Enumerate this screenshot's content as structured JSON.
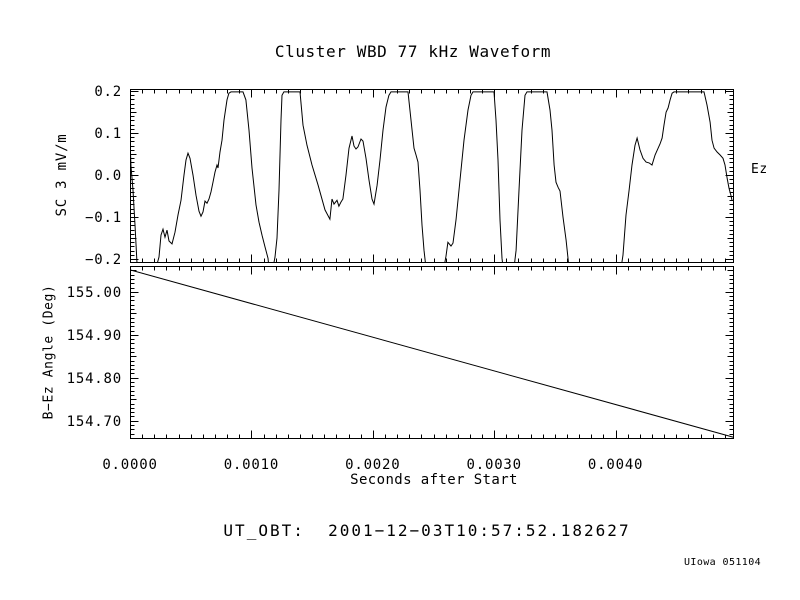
{
  "title": "Cluster WBD 77 kHz Waveform",
  "footer": {
    "ut_obt": "UT_OBT:  2001−12−03T10:57:52.182627",
    "credit": "UIowa 051104"
  },
  "chart_data": {
    "type": "line",
    "title": "Cluster WBD 77 kHz Waveform",
    "xlabel": "Seconds after Start",
    "xlim": [
      0,
      0.004967
    ],
    "x_minor_step": 0.0001,
    "xticks": [
      {
        "v": 0.0,
        "label": "0.0000"
      },
      {
        "v": 0.001,
        "label": "0.0010"
      },
      {
        "v": 0.002,
        "label": "0.0020"
      },
      {
        "v": 0.003,
        "label": "0.0030"
      },
      {
        "v": 0.004,
        "label": "0.0040"
      }
    ],
    "legend": "none",
    "grid": false,
    "panels": [
      {
        "id": "waveform",
        "ylabel": "SC 3 mV/m",
        "right_label": "Ez",
        "ylim": [
          -0.207,
          0.205
        ],
        "y_minor_step": 0.01,
        "yticks": [
          {
            "v": 0.2,
            "label": "0.2"
          },
          {
            "v": 0.1,
            "label": "0.1"
          },
          {
            "v": 0.0,
            "label": "0.0"
          },
          {
            "v": -0.1,
            "label": "−0.1"
          },
          {
            "v": -0.2,
            "label": "−0.2"
          }
        ],
        "series": [
          [
            0,
            0.083
          ],
          [
            8e-06,
            0.021
          ],
          [
            2.5e-05,
            -0.036
          ],
          [
            4.1e-05,
            -0.119
          ],
          [
            5.8e-05,
            -0.21
          ],
          [
            7.4e-05,
            -0.221
          ],
          [
            0.000214,
            -0.221
          ],
          [
            0.000239,
            -0.195
          ],
          [
            0.000255,
            -0.143
          ],
          [
            0.000272,
            -0.129
          ],
          [
            0.000288,
            -0.148
          ],
          [
            0.000305,
            -0.131
          ],
          [
            0.000321,
            -0.157
          ],
          [
            0.000346,
            -0.164
          ],
          [
            0.000371,
            -0.136
          ],
          [
            0.000395,
            -0.095
          ],
          [
            0.00042,
            -0.06
          ],
          [
            0.000445,
            0
          ],
          [
            0.000461,
            0.036
          ],
          [
            0.000478,
            0.052
          ],
          [
            0.000494,
            0.04
          ],
          [
            0.000519,
            0
          ],
          [
            0.000544,
            -0.048
          ],
          [
            0.000568,
            -0.086
          ],
          [
            0.000585,
            -0.098
          ],
          [
            0.000601,
            -0.088
          ],
          [
            0.000618,
            -0.062
          ],
          [
            0.000634,
            -0.067
          ],
          [
            0.000651,
            -0.057
          ],
          [
            0.000667,
            -0.04
          ],
          [
            0.000684,
            -0.017
          ],
          [
            0.0007,
            0.007
          ],
          [
            0.000717,
            0.024
          ],
          [
            0.000725,
            0.017
          ],
          [
            0.000741,
            0.055
          ],
          [
            0.000758,
            0.083
          ],
          [
            0.000774,
            0.131
          ],
          [
            0.000799,
            0.179
          ],
          [
            0.000815,
            0.195
          ],
          [
            0.000832,
            0.198
          ],
          [
            0.000931,
            0.198
          ],
          [
            0.000955,
            0.179
          ],
          [
            0.00098,
            0.107
          ],
          [
            0.001005,
            0.017
          ],
          [
            0.001038,
            -0.071
          ],
          [
            0.001063,
            -0.112
          ],
          [
            0.001087,
            -0.143
          ],
          [
            0.001112,
            -0.171
          ],
          [
            0.001137,
            -0.198
          ],
          [
            0.001145,
            -0.221
          ],
          [
            0.001178,
            -0.221
          ],
          [
            0.001194,
            -0.195
          ],
          [
            0.001211,
            -0.15
          ],
          [
            0.001227,
            -0.036
          ],
          [
            0.001244,
            0.131
          ],
          [
            0.001252,
            0.19
          ],
          [
            0.001268,
            0.198
          ],
          [
            0.0014,
            0.198
          ],
          [
            0.001425,
            0.119
          ],
          [
            0.001458,
            0.071
          ],
          [
            0.001499,
            0.024
          ],
          [
            0.001549,
            -0.024
          ],
          [
            0.001606,
            -0.083
          ],
          [
            0.001647,
            -0.105
          ],
          [
            0.001664,
            -0.057
          ],
          [
            0.00168,
            -0.069
          ],
          [
            0.001705,
            -0.06
          ],
          [
            0.001721,
            -0.074
          ],
          [
            0.001738,
            -0.064
          ],
          [
            0.001754,
            -0.057
          ],
          [
            0.001779,
            0
          ],
          [
            0.001804,
            0.064
          ],
          [
            0.001829,
            0.093
          ],
          [
            0.001845,
            0.069
          ],
          [
            0.001862,
            0.062
          ],
          [
            0.001878,
            0.067
          ],
          [
            0.001903,
            0.086
          ],
          [
            0.001919,
            0.081
          ],
          [
            0.001944,
            0.04
          ],
          [
            0.001969,
            -0.012
          ],
          [
            0.001993,
            -0.057
          ],
          [
            0.00201,
            -0.069
          ],
          [
            0.002035,
            -0.024
          ],
          [
            0.002059,
            0.036
          ],
          [
            0.002084,
            0.107
          ],
          [
            0.002109,
            0.162
          ],
          [
            0.002133,
            0.19
          ],
          [
            0.00215,
            0.198
          ],
          [
            0.00229,
            0.198
          ],
          [
            0.002315,
            0.131
          ],
          [
            0.002339,
            0.064
          ],
          [
            0.002356,
            0.048
          ],
          [
            0.002372,
            0.031
          ],
          [
            0.002389,
            -0.036
          ],
          [
            0.002405,
            -0.119
          ],
          [
            0.002422,
            -0.179
          ],
          [
            0.002438,
            -0.221
          ],
          [
            0.002586,
            -0.221
          ],
          [
            0.002603,
            -0.193
          ],
          [
            0.002619,
            -0.16
          ],
          [
            0.002644,
            -0.169
          ],
          [
            0.002661,
            -0.162
          ],
          [
            0.002685,
            -0.107
          ],
          [
            0.002718,
            -0.012
          ],
          [
            0.002751,
            0.083
          ],
          [
            0.002784,
            0.155
          ],
          [
            0.002809,
            0.19
          ],
          [
            0.002825,
            0.198
          ],
          [
            0.002998,
            0.198
          ],
          [
            0.003015,
            0.131
          ],
          [
            0.003031,
            0.036
          ],
          [
            0.003048,
            -0.107
          ],
          [
            0.003064,
            -0.198
          ],
          [
            0.003073,
            -0.221
          ],
          [
            0.003163,
            -0.221
          ],
          [
            0.00318,
            -0.179
          ],
          [
            0.003204,
            -0.036
          ],
          [
            0.003229,
            0.107
          ],
          [
            0.003254,
            0.19
          ],
          [
            0.00327,
            0.198
          ],
          [
            0.003435,
            0.198
          ],
          [
            0.00346,
            0.155
          ],
          [
            0.003476,
            0.107
          ],
          [
            0.003493,
            0.024
          ],
          [
            0.003509,
            -0.017
          ],
          [
            0.003526,
            -0.029
          ],
          [
            0.003542,
            -0.038
          ],
          [
            0.003567,
            -0.1
          ],
          [
            0.003592,
            -0.155
          ],
          [
            0.003608,
            -0.198
          ],
          [
            0.003616,
            -0.221
          ],
          [
            0.004045,
            -0.221
          ],
          [
            0.004061,
            -0.19
          ],
          [
            0.004086,
            -0.095
          ],
          [
            0.004111,
            -0.036
          ],
          [
            0.004135,
            0.024
          ],
          [
            0.00416,
            0.071
          ],
          [
            0.004177,
            0.088
          ],
          [
            0.004201,
            0.06
          ],
          [
            0.004226,
            0.04
          ],
          [
            0.004251,
            0.031
          ],
          [
            0.004276,
            0.029
          ],
          [
            0.0043,
            0.024
          ],
          [
            0.004325,
            0.048
          ],
          [
            0.00435,
            0.064
          ],
          [
            0.004366,
            0.074
          ],
          [
            0.004383,
            0.088
          ],
          [
            0.004399,
            0.119
          ],
          [
            0.004416,
            0.15
          ],
          [
            0.004432,
            0.16
          ],
          [
            0.004449,
            0.179
          ],
          [
            0.004465,
            0.195
          ],
          [
            0.004481,
            0.198
          ],
          [
            0.004728,
            0.198
          ],
          [
            0.004753,
            0.167
          ],
          [
            0.004778,
            0.126
          ],
          [
            0.004794,
            0.083
          ],
          [
            0.004811,
            0.064
          ],
          [
            0.004836,
            0.055
          ],
          [
            0.00486,
            0.048
          ],
          [
            0.004885,
            0.04
          ],
          [
            0.004901,
            0.024
          ],
          [
            0.004918,
            -0.007
          ],
          [
            0.004934,
            -0.031
          ],
          [
            0.004951,
            -0.05
          ],
          [
            0.004959,
            -0.06
          ]
        ]
      },
      {
        "id": "angle",
        "ylabel": "B−Ez Angle (Deg)",
        "right_label": "",
        "ylim": [
          154.66,
          155.06
        ],
        "y_minor_step": 0.01,
        "yticks": [
          {
            "v": 155.0,
            "label": "155.00"
          },
          {
            "v": 154.9,
            "label": "154.90"
          },
          {
            "v": 154.8,
            "label": "154.80"
          },
          {
            "v": 154.7,
            "label": "154.70"
          }
        ],
        "series": [
          [
            0,
            155.051
          ],
          [
            0.004967,
            154.662
          ]
        ]
      }
    ],
    "colors": {
      "trace": "#000000",
      "frame": "#000000",
      "background": "#ffffff"
    }
  }
}
